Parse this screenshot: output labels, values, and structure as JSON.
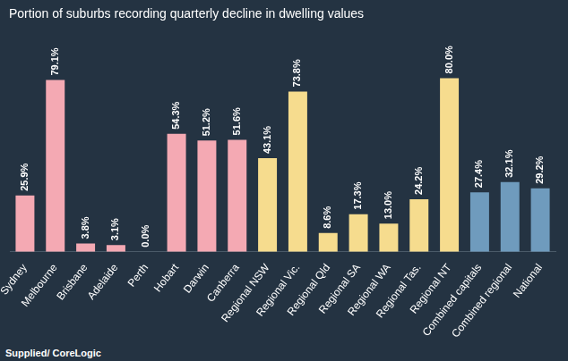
{
  "chart_data": {
    "type": "bar",
    "title": "Portion of suburbs recording quarterly decline in dwelling values",
    "categories": [
      "Sydney",
      "Melbourne",
      "Brisbane",
      "Adelaide",
      "Perth",
      "Hobart",
      "Darwin",
      "Canberra",
      "Regional NSW",
      "Regional Vic.",
      "Regional Qld",
      "Regional SA",
      "Regional WA",
      "Regional Tas.",
      "Regional NT",
      "Combined capitals",
      "Combined regional",
      "National"
    ],
    "values": [
      25.9,
      79.1,
      3.8,
      3.1,
      0.0,
      54.3,
      51.2,
      51.6,
      43.1,
      73.8,
      8.6,
      17.3,
      13.0,
      24.2,
      80.0,
      27.4,
      32.1,
      29.2
    ],
    "value_labels": [
      "25.9%",
      "79.1%",
      "3.8%",
      "3.1%",
      "0.0%",
      "54.3%",
      "51.2%",
      "51.6%",
      "43.1%",
      "73.8%",
      "8.6%",
      "17.3%",
      "13.0%",
      "24.2%",
      "80.0%",
      "27.4%",
      "32.1%",
      "29.2%"
    ],
    "colors": [
      "#f4a9b3",
      "#f4a9b3",
      "#f4a9b3",
      "#f4a9b3",
      "#f4a9b3",
      "#f4a9b3",
      "#f4a9b3",
      "#f4a9b3",
      "#f6dc8e",
      "#f6dc8e",
      "#f6dc8e",
      "#f6dc8e",
      "#f6dc8e",
      "#f6dc8e",
      "#f6dc8e",
      "#6f9bbd",
      "#6f9bbd",
      "#6f9bbd"
    ],
    "ylim": [
      0,
      100
    ],
    "grid": false,
    "data_labels": true,
    "tick_labels": "x",
    "source": "Supplied/ CoreLogic"
  }
}
